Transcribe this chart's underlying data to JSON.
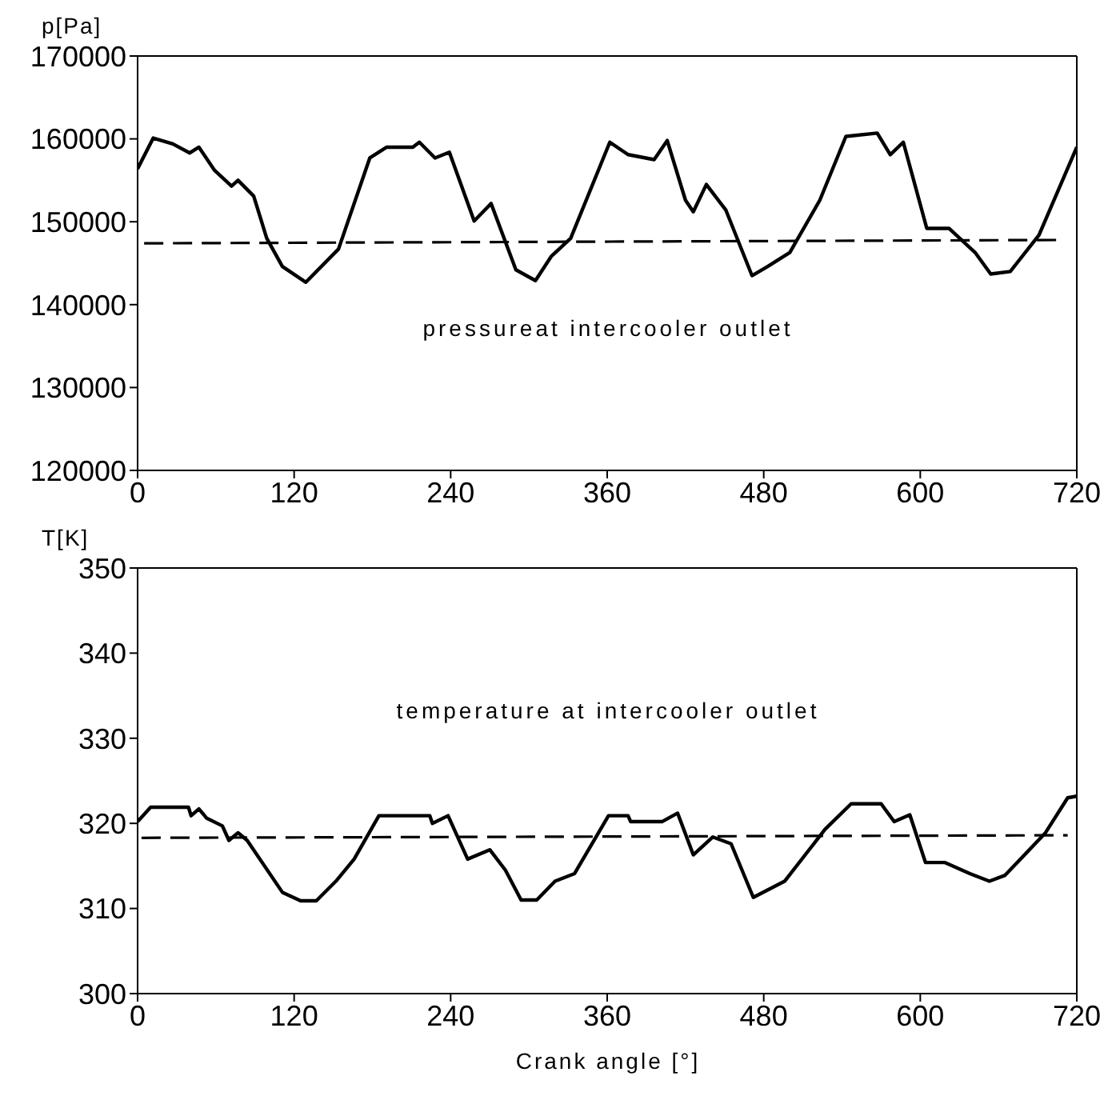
{
  "chart_data": [
    {
      "type": "line",
      "ylabel": "p[Pa]",
      "annotations": [
        "pressureat intercooler outlet"
      ],
      "xlim": [
        0,
        720
      ],
      "xticks": [
        0,
        120,
        240,
        360,
        480,
        600,
        720
      ],
      "ylim": [
        120000,
        170000
      ],
      "yticks": [
        120000,
        130000,
        140000,
        150000,
        160000,
        170000
      ],
      "marker": "none",
      "series": [
        {
          "color": "#000000",
          "line_style": "solid",
          "x": [
            0,
            12,
            27,
            40,
            47,
            59,
            72,
            77,
            89,
            99,
            111,
            129,
            154,
            178,
            191,
            211,
            216,
            228,
            239,
            258,
            271,
            290,
            305,
            317,
            332,
            362,
            376,
            396,
            406,
            420,
            426,
            436,
            451,
            471,
            483,
            500,
            523,
            543,
            567,
            577,
            587,
            605,
            622,
            642,
            654,
            669,
            691,
            720
          ],
          "values": [
            156400,
            160100,
            159400,
            158300,
            159000,
            156200,
            154300,
            155000,
            153100,
            148000,
            144600,
            142700,
            146700,
            157700,
            159000,
            159000,
            159600,
            157700,
            158400,
            150100,
            152200,
            144200,
            142900,
            145800,
            148000,
            159600,
            158100,
            157500,
            159800,
            152600,
            151200,
            154500,
            151400,
            143500,
            144600,
            146300,
            152600,
            160300,
            160700,
            158100,
            159600,
            149200,
            149200,
            146300,
            143700,
            144000,
            148400,
            159000
          ]
        },
        {
          "color": "#000000",
          "line_style": "dashed",
          "x": [
            5,
            705
          ],
          "values": [
            147400,
            147800
          ]
        }
      ]
    },
    {
      "type": "line",
      "ylabel": "T[K]",
      "xlabel": "Crank angle [°]",
      "annotations": [
        "temperature at intercooler outlet"
      ],
      "xlim": [
        0,
        720
      ],
      "xticks": [
        0,
        120,
        240,
        360,
        480,
        600,
        720
      ],
      "ylim": [
        300,
        350
      ],
      "yticks": [
        300,
        310,
        320,
        330,
        340,
        350
      ],
      "marker": "none",
      "series": [
        {
          "color": "#000000",
          "line_style": "solid",
          "x": [
            0,
            10,
            39,
            41,
            47,
            53,
            65,
            70,
            77,
            84,
            111,
            125,
            137,
            152,
            166,
            185,
            224,
            226,
            238,
            253,
            270,
            282,
            294,
            306,
            320,
            335,
            361,
            376,
            378,
            402,
            414,
            426,
            441,
            455,
            472,
            496,
            527,
            547,
            570,
            580,
            592,
            604,
            619,
            638,
            653,
            665,
            696,
            713,
            720
          ],
          "values": [
            320.2,
            321.9,
            321.9,
            320.9,
            321.7,
            320.6,
            319.7,
            318,
            318.9,
            318,
            311.9,
            310.9,
            310.9,
            313.2,
            315.8,
            320.9,
            320.9,
            320,
            320.9,
            315.8,
            316.9,
            314.5,
            311,
            311,
            313.2,
            314.1,
            320.9,
            320.9,
            320.2,
            320.2,
            321.2,
            316.3,
            318.4,
            317.6,
            311.3,
            313.2,
            319.3,
            322.3,
            322.3,
            320.2,
            321,
            315.4,
            315.4,
            314.1,
            313.2,
            313.9,
            318.9,
            323,
            323.2
          ]
        },
        {
          "color": "#000000",
          "line_style": "dashed",
          "x": [
            3,
            713
          ],
          "values": [
            318.3,
            318.6
          ]
        }
      ]
    }
  ]
}
